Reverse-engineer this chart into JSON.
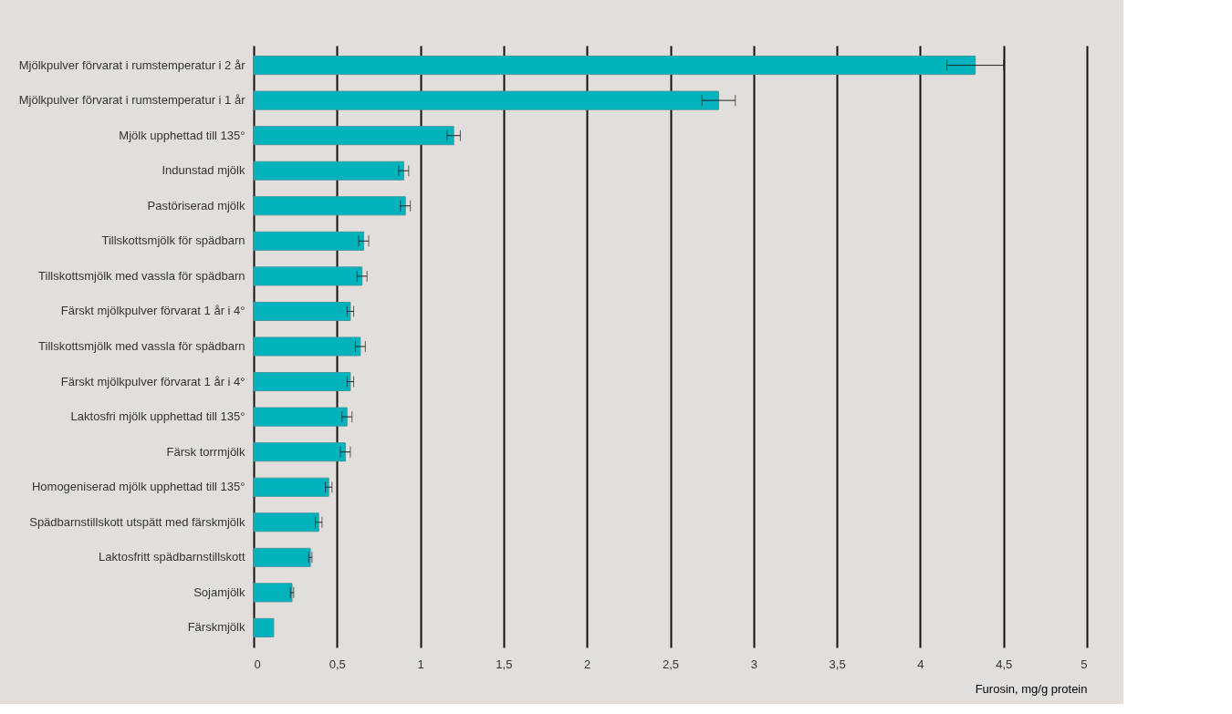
{
  "chart_data": {
    "type": "bar",
    "orientation": "horizontal",
    "xlabel": "Furosin, mg/g protein",
    "categories": [
      "Mjölkpulver förvarat i rumstemperatur i 2 år",
      "Mjölkpulver förvarat i rumstemperatur i 1 år",
      "Mjölk upphettad till 135°",
      "Indunstad mjölk",
      "Pastöriserad mjölk",
      "Tillskottsmjölk för spädbarn",
      "Tillskottsmjölk med vassla för spädbarn",
      "Färskt mjölkpulver förvarat 1 år i 4°",
      "Tillskottsmjölk med vassla för spädbarn",
      "Färskt mjölkpulver förvarat 1 år i 4°",
      "Laktosfri mjölk upphettad till 135°",
      "Färsk torrmjölk",
      "Homogeniserad mjölk upphettad till 135°",
      "Spädbarnstillskott utspätt med färskmjölk",
      "Laktosfritt  spädbarnstillskott",
      "Sojamjölk",
      "Färskmjölk"
    ],
    "values": [
      4.33,
      2.79,
      1.2,
      0.9,
      0.91,
      0.66,
      0.65,
      0.58,
      0.64,
      0.58,
      0.56,
      0.55,
      0.45,
      0.39,
      0.34,
      0.23,
      0.12
    ],
    "errors": [
      0.17,
      0.1,
      0.04,
      0.03,
      0.03,
      0.03,
      0.03,
      0.02,
      0.03,
      0.02,
      0.03,
      0.03,
      0.02,
      0.02,
      0.01,
      0.01,
      null
    ],
    "color": "#00b3bc",
    "xlim": [
      0,
      5
    ],
    "xticks": [
      0,
      {
        "value": 0.5,
        "label": "0,5"
      },
      1,
      {
        "value": 1.5,
        "label": "1,5"
      },
      2,
      {
        "value": 2.5,
        "label": "2,5"
      },
      3,
      {
        "value": 3.5,
        "label": "3,5"
      },
      4,
      {
        "value": 4.5,
        "label": "4,5"
      },
      5
    ],
    "grid": "x"
  }
}
